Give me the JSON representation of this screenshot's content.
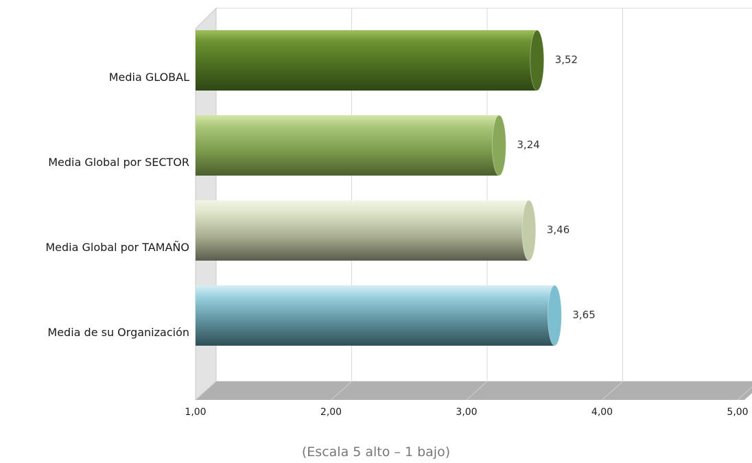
{
  "chart_data": {
    "type": "bar",
    "orientation": "horizontal",
    "style": "3d-cylinder",
    "categories": [
      "Media GLOBAL",
      "Media Global por SECTOR",
      "Media Global por TAMAÑO",
      "Media de su Organización"
    ],
    "values": [
      3.52,
      3.24,
      3.46,
      3.65
    ],
    "value_labels": [
      "3,52",
      "3,24",
      "3,46",
      "3,65"
    ],
    "xlim": [
      1,
      5
    ],
    "x_ticks": [
      1,
      2,
      3,
      4,
      5
    ],
    "x_tick_labels": [
      "1,00",
      "2,00",
      "3,00",
      "4,00",
      "5,00"
    ],
    "grid": true,
    "bar_colors": [
      "#4f6f22",
      "#8aa85a",
      "#c3cca8",
      "#7bbfd0"
    ],
    "caption": "(Escala 5 alto – 1 bajo)"
  }
}
